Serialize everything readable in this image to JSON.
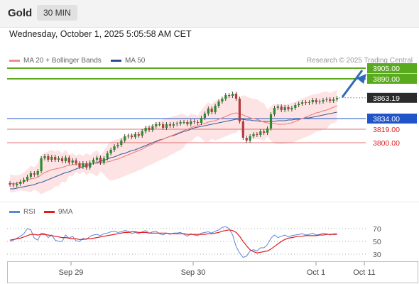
{
  "header": {
    "symbol": "Gold",
    "timeframe": "30 MIN"
  },
  "date_line": "Wednesday, October 1, 2025 5:05:58 AM CET",
  "credit": "Research © 2025 Trading Central",
  "colors": {
    "ma20": "#f07b7b",
    "ma50": "#3b5a99",
    "bands": "#fcd9d9",
    "up": "#2c8a2c",
    "down": "#b43c3c",
    "resistance": "#5aaa1e",
    "pivot": "#1f55c9",
    "support": "#e07070",
    "rsi": "#5b86d6",
    "rsi_ma": "#e31b1b",
    "arrow": "#2f6bb5"
  },
  "chart_data": [
    {
      "type": "candlestick",
      "legend": [
        "MA 20 + Bollinger Bands",
        "MA 50"
      ],
      "x_ticks": [
        "Sep 29",
        "Sep 30",
        "Oct 1",
        "Oct 11"
      ],
      "ylim": [
        3735,
        3912
      ],
      "current_price": "3863.19",
      "levels": [
        {
          "label": "3905.00",
          "value": 3905,
          "kind": "resistance"
        },
        {
          "label": "3890.00",
          "value": 3890,
          "kind": "resistance"
        },
        {
          "label": "3834.00",
          "value": 3834,
          "kind": "pivot"
        },
        {
          "label": "3819.00",
          "value": 3819,
          "kind": "support"
        },
        {
          "label": "3800.00",
          "value": 3800,
          "kind": "support"
        }
      ],
      "closes": [
        3741,
        3740,
        3742,
        3745,
        3748,
        3752,
        3757,
        3755,
        3760,
        3778,
        3781,
        3776,
        3780,
        3776,
        3778,
        3774,
        3779,
        3772,
        3775,
        3771,
        3766,
        3771,
        3765,
        3772,
        3776,
        3779,
        3772,
        3778,
        3785,
        3790,
        3795,
        3797,
        3803,
        3809,
        3810,
        3808,
        3812,
        3810,
        3816,
        3821,
        3818,
        3823,
        3826,
        3826,
        3821,
        3826,
        3824,
        3826,
        3827,
        3829,
        3829,
        3826,
        3830,
        3829,
        3828,
        3835,
        3841,
        3848,
        3843,
        3852,
        3858,
        3862,
        3867,
        3866,
        3869,
        3862,
        3830,
        3807,
        3803,
        3809,
        3812,
        3811,
        3816,
        3814,
        3820,
        3840,
        3849,
        3851,
        3846,
        3850,
        3847,
        3849,
        3853,
        3855,
        3857,
        3856,
        3857,
        3860,
        3857,
        3858,
        3860,
        3861,
        3859,
        3861,
        3863
      ],
      "ma20": [
        3743,
        3742,
        3743,
        3744,
        3745,
        3747,
        3749,
        3750,
        3751,
        3755,
        3758,
        3760,
        3762,
        3763,
        3764,
        3765,
        3767,
        3768,
        3769,
        3770,
        3770,
        3770,
        3770,
        3770,
        3771,
        3771,
        3771,
        3772,
        3773,
        3774,
        3776,
        3777,
        3779,
        3781,
        3783,
        3785,
        3787,
        3789,
        3791,
        3794,
        3796,
        3798,
        3801,
        3803,
        3805,
        3807,
        3809,
        3811,
        3813,
        3815,
        3817,
        3819,
        3821,
        3823,
        3824,
        3826,
        3827,
        3829,
        3830,
        3831,
        3833,
        3835,
        3837,
        3839,
        3841,
        3842,
        3841,
        3839,
        3837,
        3835,
        3834,
        3833,
        3831,
        3829,
        3828,
        3827,
        3827,
        3826,
        3826,
        3826,
        3827,
        3828,
        3830,
        3832,
        3834,
        3836,
        3838,
        3840,
        3842,
        3843,
        3845,
        3846,
        3848,
        3850,
        3852
      ],
      "ma50": [
        3735,
        3735,
        3736,
        3737,
        3738,
        3739,
        3740,
        3741,
        3743,
        3744,
        3746,
        3748,
        3750,
        3752,
        3754,
        3756,
        3758,
        3759,
        3761,
        3763,
        3765,
        3766,
        3768,
        3769,
        3771,
        3772,
        3774,
        3775,
        3777,
        3779,
        3780,
        3782,
        3784,
        3785,
        3787,
        3789,
        3790,
        3792,
        3794,
        3796,
        3798,
        3800,
        3802,
        3804,
        3805,
        3807,
        3809,
        3810,
        3812,
        3814,
        3816,
        3817,
        3819,
        3821,
        3822,
        3823,
        3824,
        3825,
        3826,
        3827,
        3828,
        3829,
        3830,
        3831,
        3832,
        3833,
        3833,
        3833,
        3832,
        3832,
        3831,
        3831,
        3830,
        3830,
        3830,
        3830,
        3830,
        3831,
        3831,
        3831,
        3832,
        3832,
        3833,
        3833,
        3834,
        3835,
        3835,
        3836,
        3837,
        3838,
        3839,
        3840,
        3841,
        3842,
        3843
      ]
    },
    {
      "type": "line",
      "legend": [
        "RSI",
        "9MA"
      ],
      "y_ticks": [
        "70",
        "50",
        "30"
      ],
      "ylim": [
        20,
        80
      ],
      "series": [
        {
          "name": "RSI",
          "values": [
            50,
            52,
            55,
            58,
            62,
            70,
            68,
            55,
            52,
            63,
            62,
            56,
            60,
            52,
            50,
            50,
            60,
            55,
            58,
            51,
            50,
            55,
            53,
            58,
            60,
            61,
            59,
            62,
            63,
            65,
            66,
            64,
            65,
            67,
            66,
            62,
            64,
            62,
            65,
            67,
            63,
            65,
            66,
            62,
            60,
            63,
            61,
            63,
            63,
            64,
            61,
            58,
            62,
            60,
            59,
            63,
            64,
            65,
            63,
            66,
            68,
            72,
            73,
            70,
            60,
            42,
            32,
            25,
            27,
            35,
            37,
            35,
            40,
            40,
            45,
            55,
            60,
            56,
            58,
            60,
            57,
            59,
            60,
            61,
            62,
            60,
            61,
            63,
            60,
            61,
            63,
            62,
            60,
            62,
            62
          ]
        },
        {
          "name": "9MA",
          "values": [
            52,
            53,
            54,
            55,
            57,
            59,
            61,
            61,
            60,
            61,
            61,
            60,
            59,
            58,
            57,
            56,
            56,
            55,
            54,
            54,
            53,
            53,
            54,
            54,
            55,
            56,
            57,
            58,
            59,
            60,
            61,
            62,
            63,
            64,
            64,
            65,
            65,
            64,
            64,
            64,
            63,
            63,
            63,
            63,
            63,
            63,
            62,
            62,
            62,
            62,
            62,
            61,
            61,
            61,
            61,
            61,
            61,
            62,
            62,
            63,
            64,
            66,
            67,
            68,
            67,
            64,
            58,
            50,
            43,
            37,
            34,
            32,
            33,
            34,
            35,
            38,
            42,
            46,
            50,
            53,
            55,
            56,
            57,
            58,
            58,
            59,
            59,
            59,
            59,
            60,
            60,
            61,
            61,
            61,
            61
          ]
        }
      ]
    }
  ]
}
